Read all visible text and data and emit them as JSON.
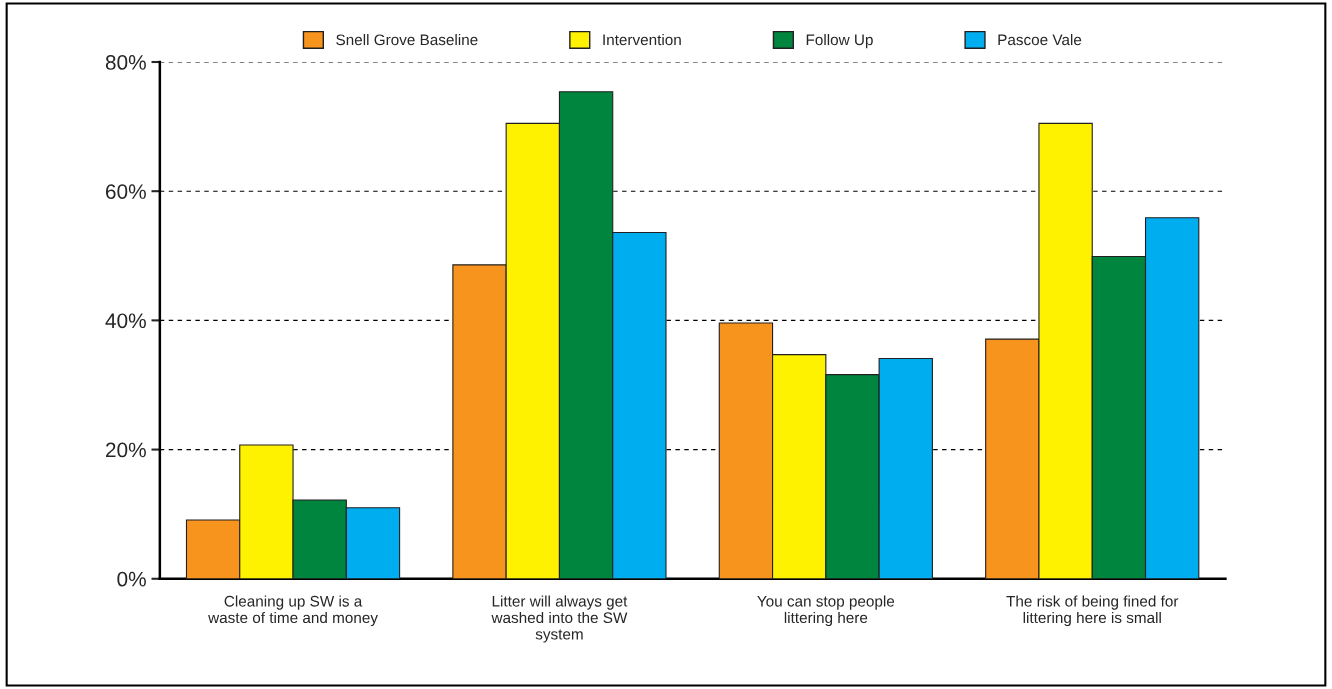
{
  "chart_data": {
    "type": "bar",
    "categories": [
      "Cleaning up SW is a\nwaste of time and money",
      "Litter will always get\nwashed into the SW\nsystem",
      "You can stop people\nlittering here",
      "The risk of being fined for\nlittering here is small"
    ],
    "series": [
      {
        "name": "Snell Grove Baseline",
        "color": "#f7941d",
        "values": [
          9.1,
          48.6,
          39.6,
          37.1
        ]
      },
      {
        "name": "Intervention",
        "color": "#fff200",
        "values": [
          20.7,
          70.5,
          34.7,
          70.5
        ]
      },
      {
        "name": "Follow Up",
        "color": "#00853f",
        "values": [
          12.2,
          75.4,
          31.6,
          49.9
        ]
      },
      {
        "name": "Pascoe Vale",
        "color": "#00aeef",
        "values": [
          11.0,
          53.6,
          34.1,
          55.9
        ]
      }
    ],
    "ylim": [
      0,
      80
    ],
    "yticks": [
      {
        "value": 0,
        "label": "0%"
      },
      {
        "value": 20,
        "label": "20%"
      },
      {
        "value": 40,
        "label": "40%"
      },
      {
        "value": 60,
        "label": "60%"
      },
      {
        "value": 80,
        "label": "80%"
      }
    ],
    "grid": "y",
    "legend": "top"
  }
}
